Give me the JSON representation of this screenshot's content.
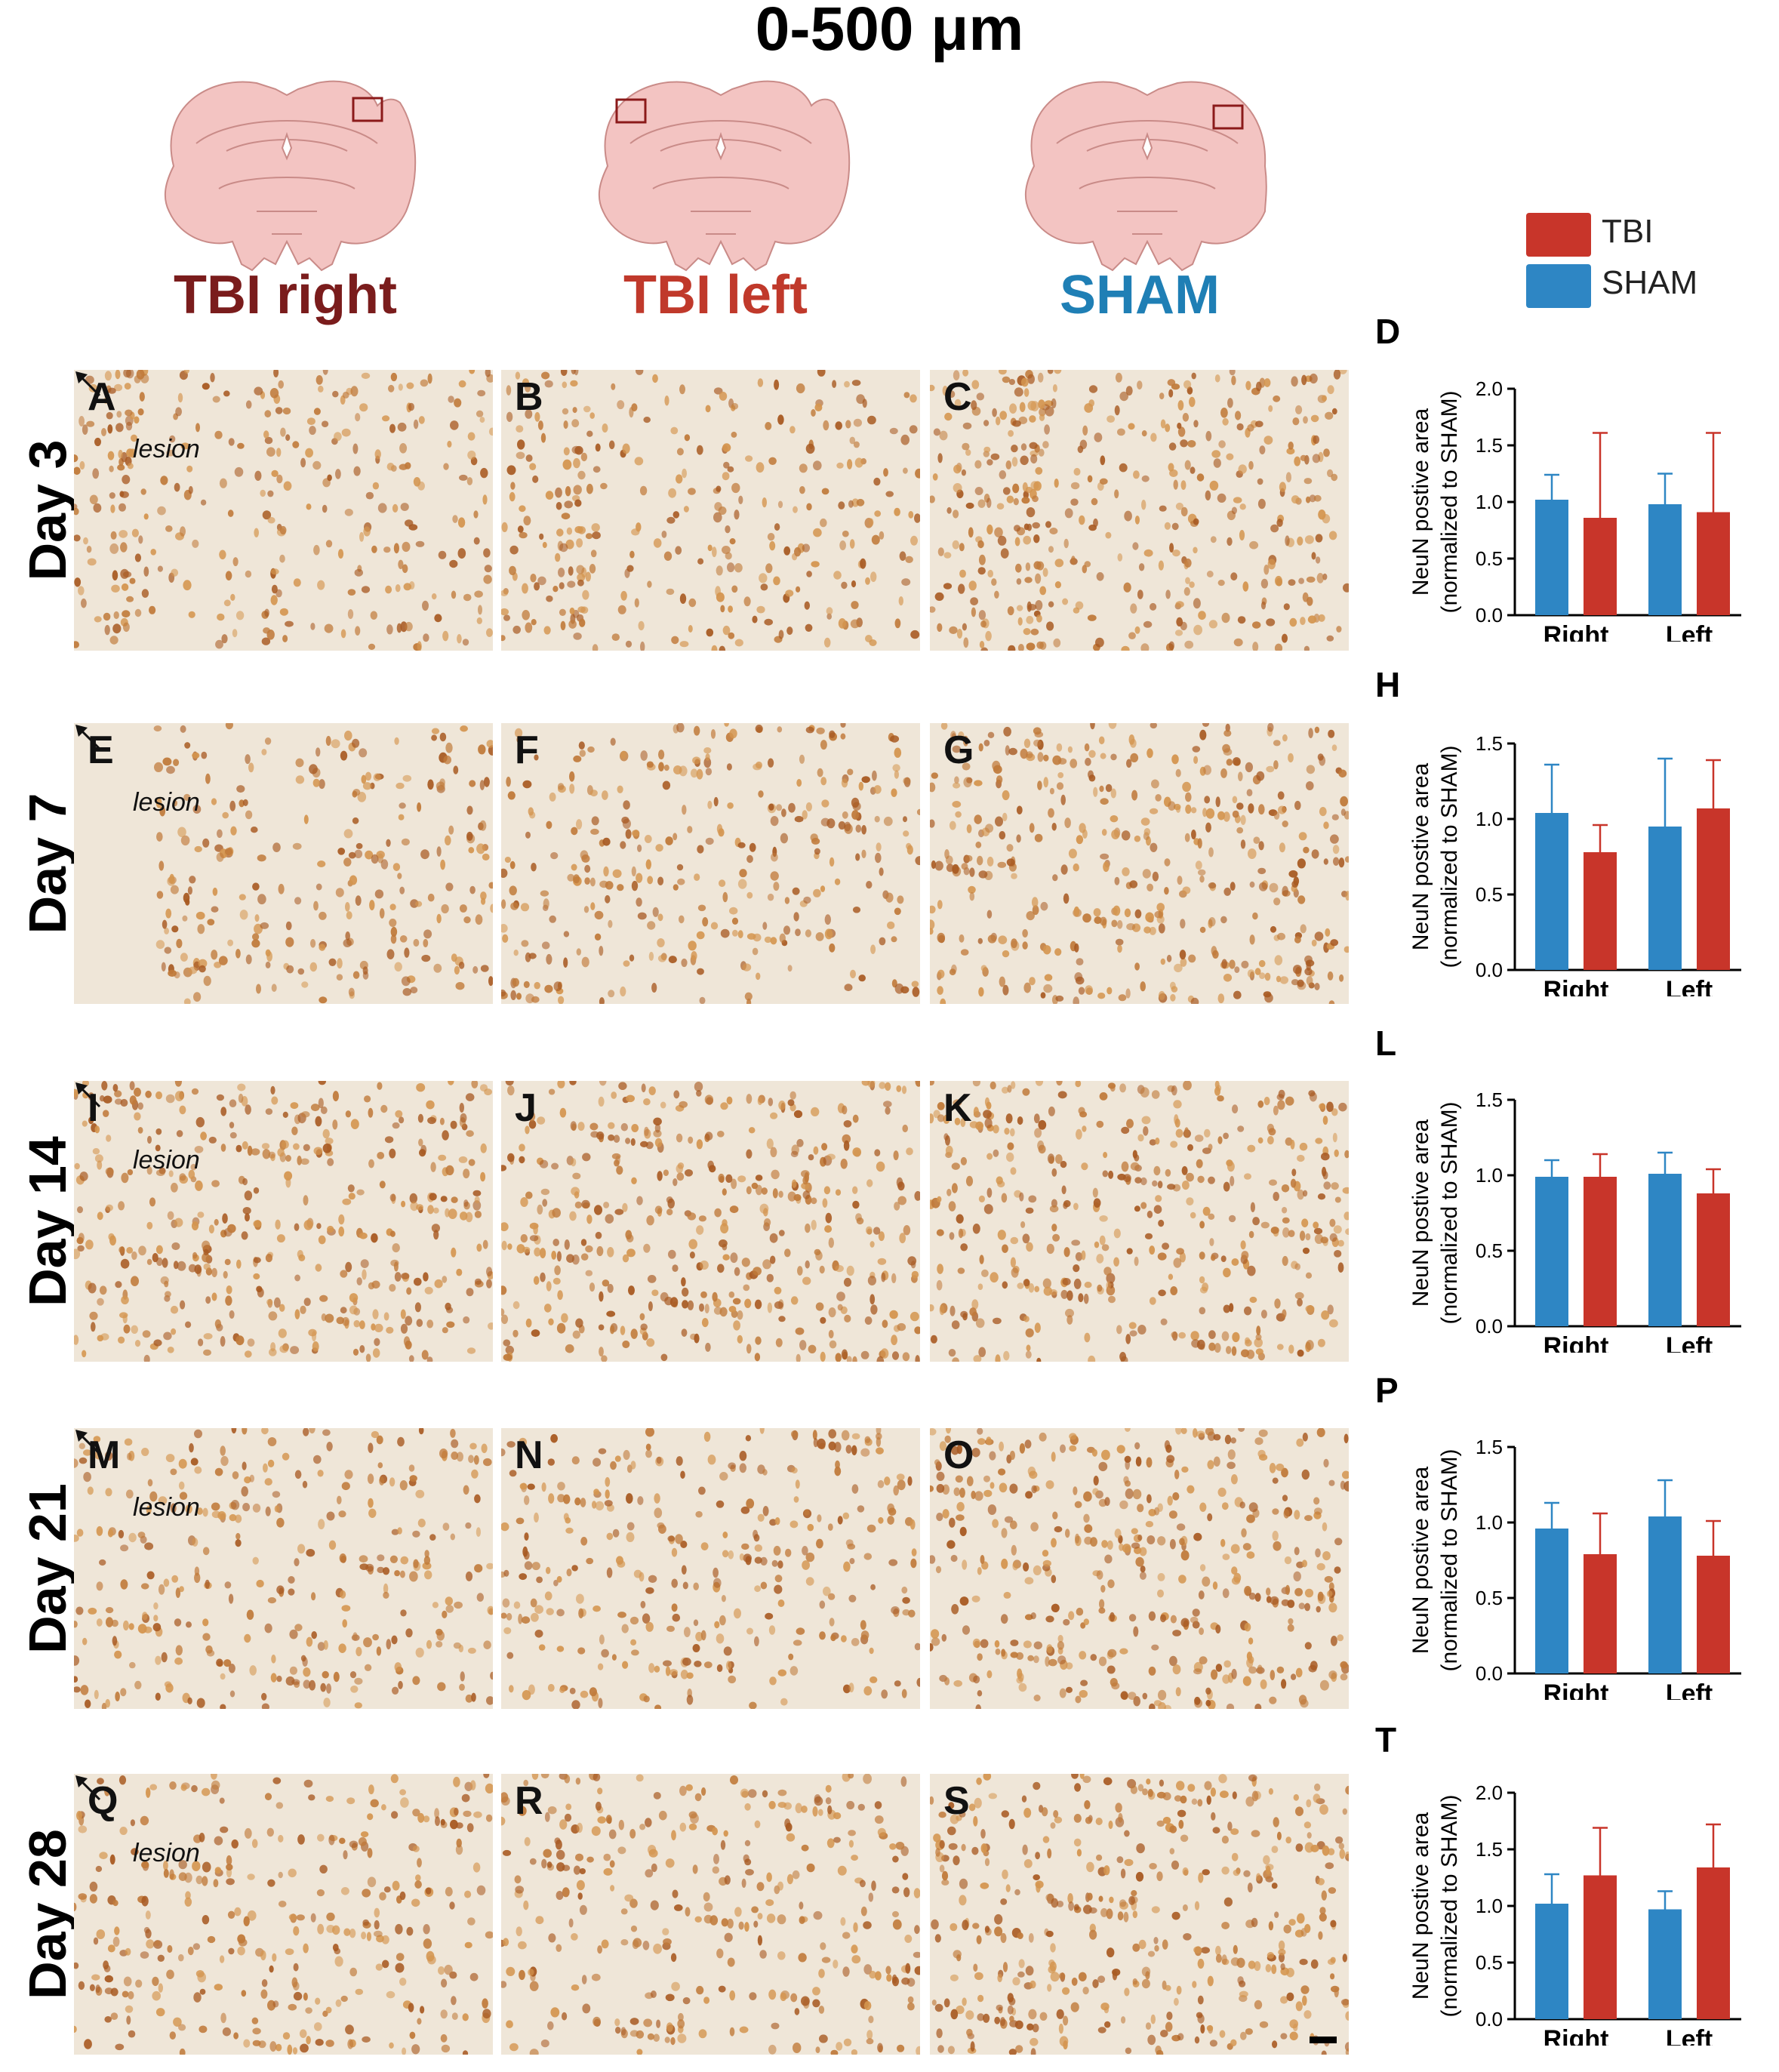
{
  "title": "0-500 μm",
  "columns": [
    {
      "label": "TBI right",
      "color": "#7a1c1c"
    },
    {
      "label": "TBI left",
      "color": "#c0392b"
    },
    {
      "label": "SHAM",
      "color": "#1f7fb5"
    }
  ],
  "legend": [
    {
      "label": "TBI",
      "color": "#c8352a"
    },
    {
      "label": "SHAM",
      "color": "#2e86c4"
    }
  ],
  "rows": [
    {
      "label": "Day 3",
      "panels": [
        "A",
        "B",
        "C"
      ],
      "chart_letter": "D",
      "lesion": "lesion"
    },
    {
      "label": "Day 7",
      "panels": [
        "E",
        "F",
        "G"
      ],
      "chart_letter": "H",
      "lesion": "lesion"
    },
    {
      "label": "Day 14",
      "panels": [
        "I",
        "J",
        "K"
      ],
      "chart_letter": "L",
      "lesion": "lesion"
    },
    {
      "label": "Day 21",
      "panels": [
        "M",
        "N",
        "O"
      ],
      "chart_letter": "P",
      "lesion": "lesion"
    },
    {
      "label": "Day 28",
      "panels": [
        "Q",
        "R",
        "S"
      ],
      "chart_letter": "T",
      "lesion": "lesion"
    }
  ],
  "chart_data": [
    {
      "type": "bar",
      "title": "D",
      "categories": [
        "Right",
        "Left"
      ],
      "ylabel_line1": "NeuN postive area",
      "ylabel_line2": "(normalized to SHAM)",
      "ylim": [
        0,
        2.0
      ],
      "yticks": [
        "0.0",
        "0.5",
        "1.0",
        "1.5",
        "2.0"
      ],
      "series": [
        {
          "name": "SHAM",
          "color": "#2e86c4",
          "values": [
            1.02,
            0.98
          ],
          "err": [
            0.22,
            0.27
          ]
        },
        {
          "name": "TBI",
          "color": "#c8352a",
          "values": [
            0.86,
            0.91
          ],
          "err": [
            0.75,
            0.7
          ]
        }
      ]
    },
    {
      "type": "bar",
      "title": "H",
      "categories": [
        "Right",
        "Left"
      ],
      "ylabel_line1": "NeuN postive area",
      "ylabel_line2": "(normalized to SHAM)",
      "ylim": [
        0,
        1.5
      ],
      "yticks": [
        "0.0",
        "0.5",
        "1.0",
        "1.5"
      ],
      "series": [
        {
          "name": "SHAM",
          "color": "#2e86c4",
          "values": [
            1.04,
            0.95
          ],
          "err": [
            0.32,
            0.45
          ]
        },
        {
          "name": "TBI",
          "color": "#c8352a",
          "values": [
            0.78,
            1.07
          ],
          "err": [
            0.18,
            0.32
          ]
        }
      ]
    },
    {
      "type": "bar",
      "title": "L",
      "categories": [
        "Right",
        "Left"
      ],
      "ylabel_line1": "NeuN postive area",
      "ylabel_line2": "(normalized to SHAM)",
      "ylim": [
        0,
        1.5
      ],
      "yticks": [
        "0.0",
        "0.5",
        "1.0",
        "1.5"
      ],
      "series": [
        {
          "name": "SHAM",
          "color": "#2e86c4",
          "values": [
            0.99,
            1.01
          ],
          "err": [
            0.11,
            0.14
          ]
        },
        {
          "name": "TBI",
          "color": "#c8352a",
          "values": [
            0.99,
            0.88
          ],
          "err": [
            0.15,
            0.16
          ]
        }
      ]
    },
    {
      "type": "bar",
      "title": "P",
      "categories": [
        "Right",
        "Left"
      ],
      "ylabel_line1": "NeuN postive area",
      "ylabel_line2": "(normalized to SHAM)",
      "ylim": [
        0,
        1.5
      ],
      "yticks": [
        "0.0",
        "0.5",
        "1.0",
        "1.5"
      ],
      "series": [
        {
          "name": "SHAM",
          "color": "#2e86c4",
          "values": [
            0.96,
            1.04
          ],
          "err": [
            0.17,
            0.24
          ]
        },
        {
          "name": "TBI",
          "color": "#c8352a",
          "values": [
            0.79,
            0.78
          ],
          "err": [
            0.27,
            0.23
          ]
        }
      ]
    },
    {
      "type": "bar",
      "title": "T",
      "categories": [
        "Right",
        "Left"
      ],
      "ylabel_line1": "NeuN postive area",
      "ylabel_line2": "(normalized to SHAM)",
      "ylim": [
        0,
        2.0
      ],
      "yticks": [
        "0.0",
        "0.5",
        "1.0",
        "1.5",
        "2.0"
      ],
      "series": [
        {
          "name": "SHAM",
          "color": "#2e86c4",
          "values": [
            1.02,
            0.97
          ],
          "err": [
            0.26,
            0.16
          ]
        },
        {
          "name": "TBI",
          "color": "#c8352a",
          "values": [
            1.27,
            1.34
          ],
          "err": [
            0.42,
            0.38
          ]
        }
      ]
    }
  ]
}
